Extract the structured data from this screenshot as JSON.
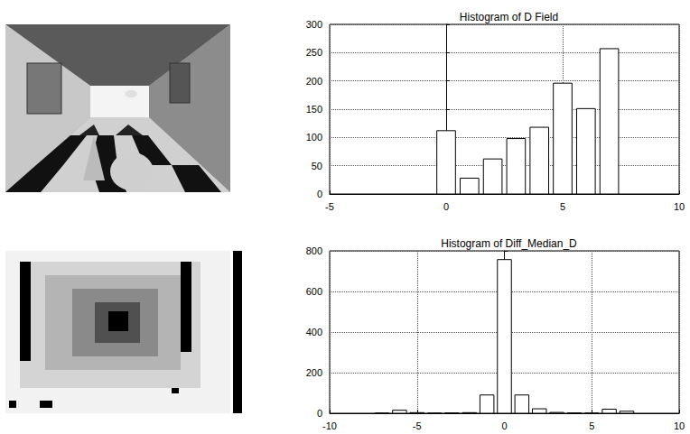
{
  "chart_data": [
    {
      "type": "histogram",
      "title": "Histogram of D Field",
      "bins": [
        -0.5,
        0.5,
        1.5,
        2.5,
        3.5,
        4.5,
        5.5,
        6.5,
        7.5
      ],
      "values": [
        112,
        28,
        62,
        98,
        118,
        196,
        151,
        257
      ],
      "color": "#000000",
      "xlim": [
        -5,
        10
      ],
      "xticks": [
        -5,
        0,
        5,
        10
      ],
      "ylim": [
        0,
        300
      ],
      "yticks": [
        0,
        50,
        100,
        150,
        200,
        250,
        300
      ],
      "grid": true
    },
    {
      "type": "histogram",
      "title": "Histogram of Diff_Median_D",
      "bins": [
        -7.5,
        -6.5,
        -5.5,
        -4.5,
        -3.5,
        -2.5,
        -1.5,
        -0.5,
        0.5,
        1.5,
        2.5,
        3.5,
        4.5,
        5.5,
        6.5,
        7.5
      ],
      "values": [
        0,
        15,
        3,
        0,
        1,
        3,
        90,
        757,
        90,
        22,
        4,
        1,
        0,
        20,
        10
      ],
      "color": "#000000",
      "xlim": [
        -10,
        10
      ],
      "xticks": [
        -10,
        -5,
        0,
        5,
        10
      ],
      "ylim": [
        0,
        800
      ],
      "yticks": [
        0,
        200,
        400,
        600,
        800
      ],
      "grid": true
    }
  ]
}
